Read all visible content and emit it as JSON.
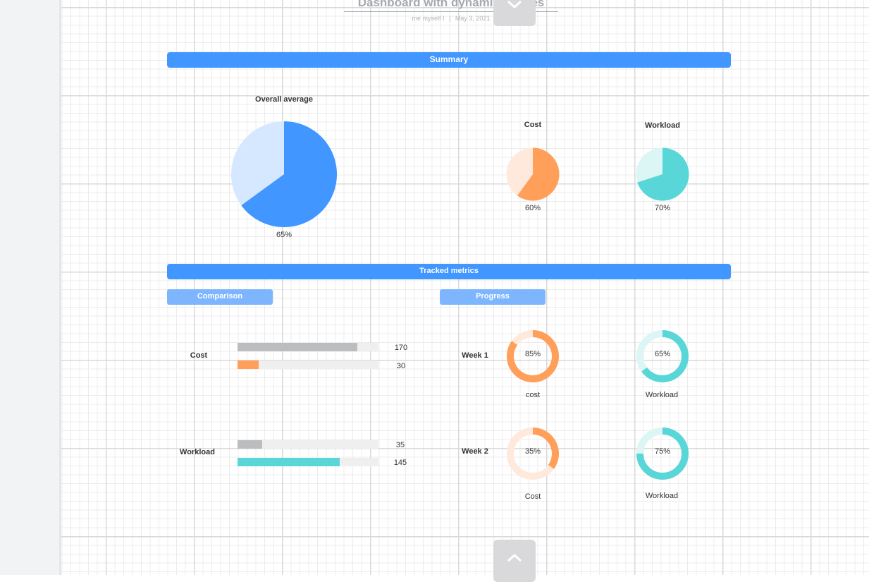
{
  "header": {
    "title": "Dashboard with dynamic shapes",
    "author": "me myself I",
    "separator": "|",
    "date": "May 3, 2021"
  },
  "icons": {
    "collapse_top": "chevron-down-icon",
    "collapse_bottom": "chevron-up-icon"
  },
  "colors": {
    "blue": "#4197ff",
    "blue_light": "#d6e8ff",
    "orange": "#ff9f59",
    "orange_light": "#ffe9dc",
    "teal": "#59d6d8",
    "teal_light": "#dcf5f5",
    "gray": "#bcbdbf",
    "track": "#efefef"
  },
  "summary": {
    "banner": "Summary",
    "overall": {
      "title": "Overall average",
      "percent": 65,
      "label": "65%"
    },
    "cost": {
      "title": "Cost",
      "percent": 60,
      "label": "60%"
    },
    "workload": {
      "title": "Workload",
      "percent": 70,
      "label": "70%"
    }
  },
  "tracked": {
    "banner": "Tracked metrics",
    "comparison": {
      "label": "Comparison",
      "rows": [
        {
          "name": "Cost",
          "bars": [
            {
              "value": 170,
              "label": "170",
              "color": "#bcbdbf"
            },
            {
              "value": 30,
              "label": "30",
              "color": "#ff9f59"
            }
          ]
        },
        {
          "name": "Workload",
          "bars": [
            {
              "value": 35,
              "label": "35",
              "color": "#bcbdbf"
            },
            {
              "value": 145,
              "label": "145",
              "color": "#59d6d8"
            }
          ]
        }
      ]
    },
    "progress": {
      "label": "Progress",
      "weeks": [
        {
          "name": "Week 1",
          "cost": {
            "percent": 85,
            "label": "85%",
            "caption": "cost"
          },
          "workload": {
            "percent": 65,
            "label": "65%",
            "caption": "Workload"
          }
        },
        {
          "name": "Week 2",
          "cost": {
            "percent": 35,
            "label": "35%",
            "caption": "Cost"
          },
          "workload": {
            "percent": 75,
            "label": "75%",
            "caption": "Workload"
          }
        }
      ]
    }
  }
}
